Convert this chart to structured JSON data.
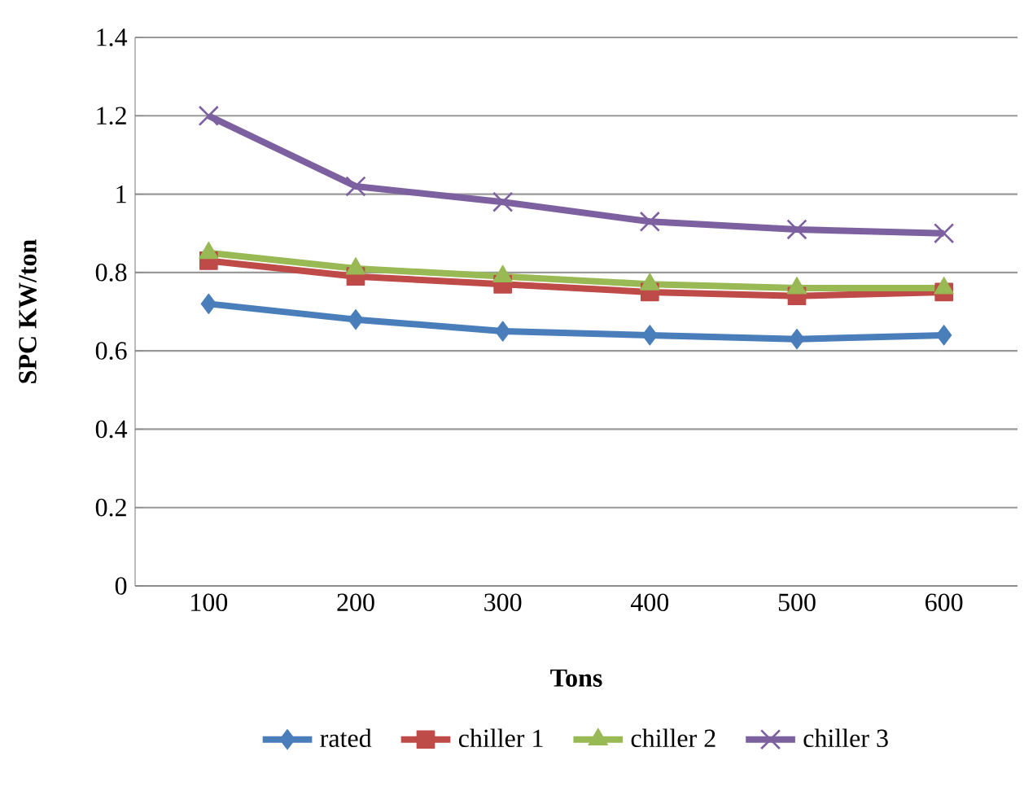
{
  "chart_data": {
    "type": "line",
    "xlabel": "Tons",
    "ylabel": "SPC KW/ton",
    "categories": [
      "100",
      "200",
      "300",
      "400",
      "500",
      "600"
    ],
    "series": [
      {
        "name": "rated",
        "color": "#4a7ebb",
        "marker": "diamond",
        "values": [
          0.72,
          0.68,
          0.65,
          0.64,
          0.63,
          0.64
        ]
      },
      {
        "name": "chiller 1",
        "color": "#be4b48",
        "marker": "square",
        "values": [
          0.83,
          0.79,
          0.77,
          0.75,
          0.74,
          0.75
        ]
      },
      {
        "name": "chiller 2",
        "color": "#98b954",
        "marker": "triangle",
        "values": [
          0.85,
          0.81,
          0.79,
          0.77,
          0.76,
          0.76
        ]
      },
      {
        "name": "chiller 3",
        "color": "#7d60a0",
        "marker": "cross",
        "values": [
          1.2,
          1.02,
          0.98,
          0.93,
          0.91,
          0.9
        ]
      }
    ],
    "ylim": [
      0,
      1.4
    ],
    "yticks": [
      0,
      0.2,
      0.4,
      0.6,
      0.8,
      1,
      1.2,
      1.4
    ],
    "grid": "y",
    "legend": "bottom",
    "line_style": "solid"
  }
}
